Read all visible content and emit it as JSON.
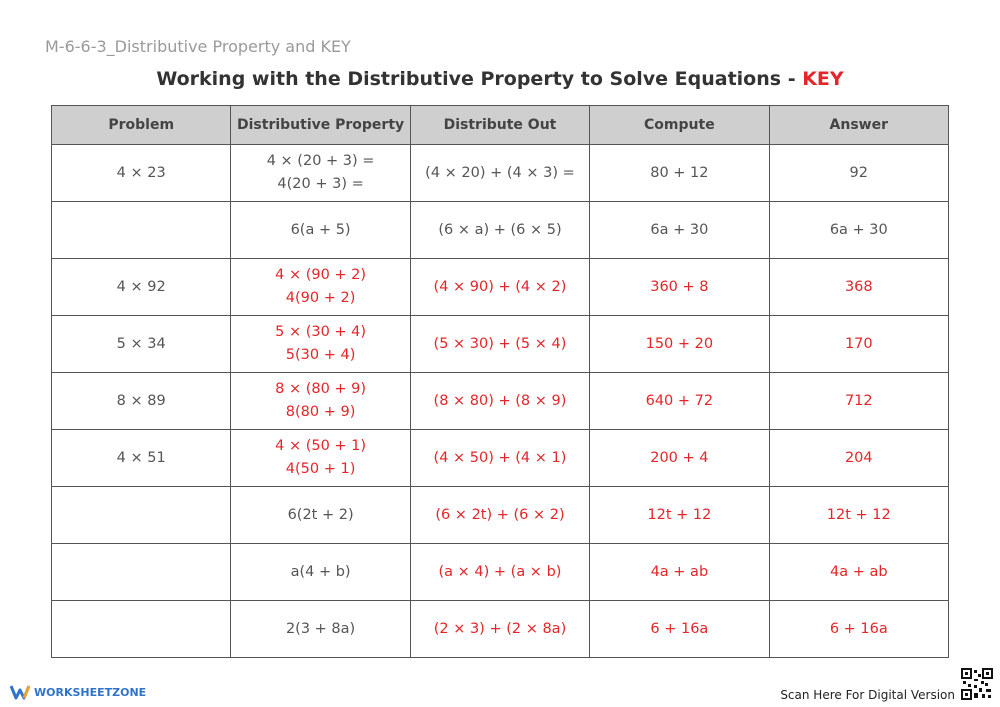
{
  "header": {
    "doc_id": "M-6-6-3_Distributive Property and KEY",
    "title": "Working with the Distributive Property to Solve Equations -",
    "title_key": "KEY"
  },
  "key_color": "#e3262a",
  "table": {
    "columns": [
      "Problem",
      "Distributive Property",
      "Distribute Out",
      "Compute",
      "Answer"
    ],
    "rows": [
      {
        "key_from": 5,
        "cells": [
          [
            "4 × 23"
          ],
          [
            "4 × (20 + 3) =",
            "4(20 + 3) ="
          ],
          [
            "(4 × 20) + (4 × 3) ="
          ],
          [
            "80 + 12"
          ],
          [
            "92"
          ]
        ]
      },
      {
        "key_from": 5,
        "cells": [
          [],
          [
            "6(a + 5)"
          ],
          [
            "(6 × a) + (6 × 5)"
          ],
          [
            "6a + 30"
          ],
          [
            "6a + 30"
          ]
        ]
      },
      {
        "key_from": 1,
        "cells": [
          [
            "4 × 92"
          ],
          [
            "4 × (90 + 2)",
            "4(90 + 2)"
          ],
          [
            "(4 × 90) + (4 × 2)"
          ],
          [
            "360 + 8"
          ],
          [
            "368"
          ]
        ]
      },
      {
        "key_from": 1,
        "cells": [
          [
            "5 × 34"
          ],
          [
            "5 × (30 + 4)",
            "5(30 + 4)"
          ],
          [
            "(5 × 30) + (5 × 4)"
          ],
          [
            "150 + 20"
          ],
          [
            "170"
          ]
        ]
      },
      {
        "key_from": 1,
        "cells": [
          [
            "8 × 89"
          ],
          [
            "8 × (80 + 9)",
            "8(80 + 9)"
          ],
          [
            "(8 × 80) + (8 × 9)"
          ],
          [
            "640 + 72"
          ],
          [
            "712"
          ]
        ]
      },
      {
        "key_from": 1,
        "cells": [
          [
            "4 × 51"
          ],
          [
            "4 × (50 + 1)",
            "4(50 + 1)"
          ],
          [
            "(4 × 50) + (4 × 1)"
          ],
          [
            "200 + 4"
          ],
          [
            "204"
          ]
        ]
      },
      {
        "key_from": 2,
        "cells": [
          [],
          [
            "6(2t + 2)"
          ],
          [
            "(6 × 2t) + (6 × 2)"
          ],
          [
            "12t + 12"
          ],
          [
            "12t + 12"
          ]
        ]
      },
      {
        "key_from": 2,
        "cells": [
          [],
          [
            "a(4 + b)"
          ],
          [
            "(a × 4) + (a × b)"
          ],
          [
            "4a + ab"
          ],
          [
            "4a + ab"
          ]
        ]
      },
      {
        "key_from": 2,
        "cells": [
          [],
          [
            "2(3 + 8a)"
          ],
          [
            "(2 × 3) + (2 × 8a)"
          ],
          [
            "6 + 16a"
          ],
          [
            "6 + 16a"
          ]
        ]
      }
    ]
  },
  "footer": {
    "brand": "WORKSHEETZONE",
    "scan_text": "Scan Here For Digital Version"
  }
}
